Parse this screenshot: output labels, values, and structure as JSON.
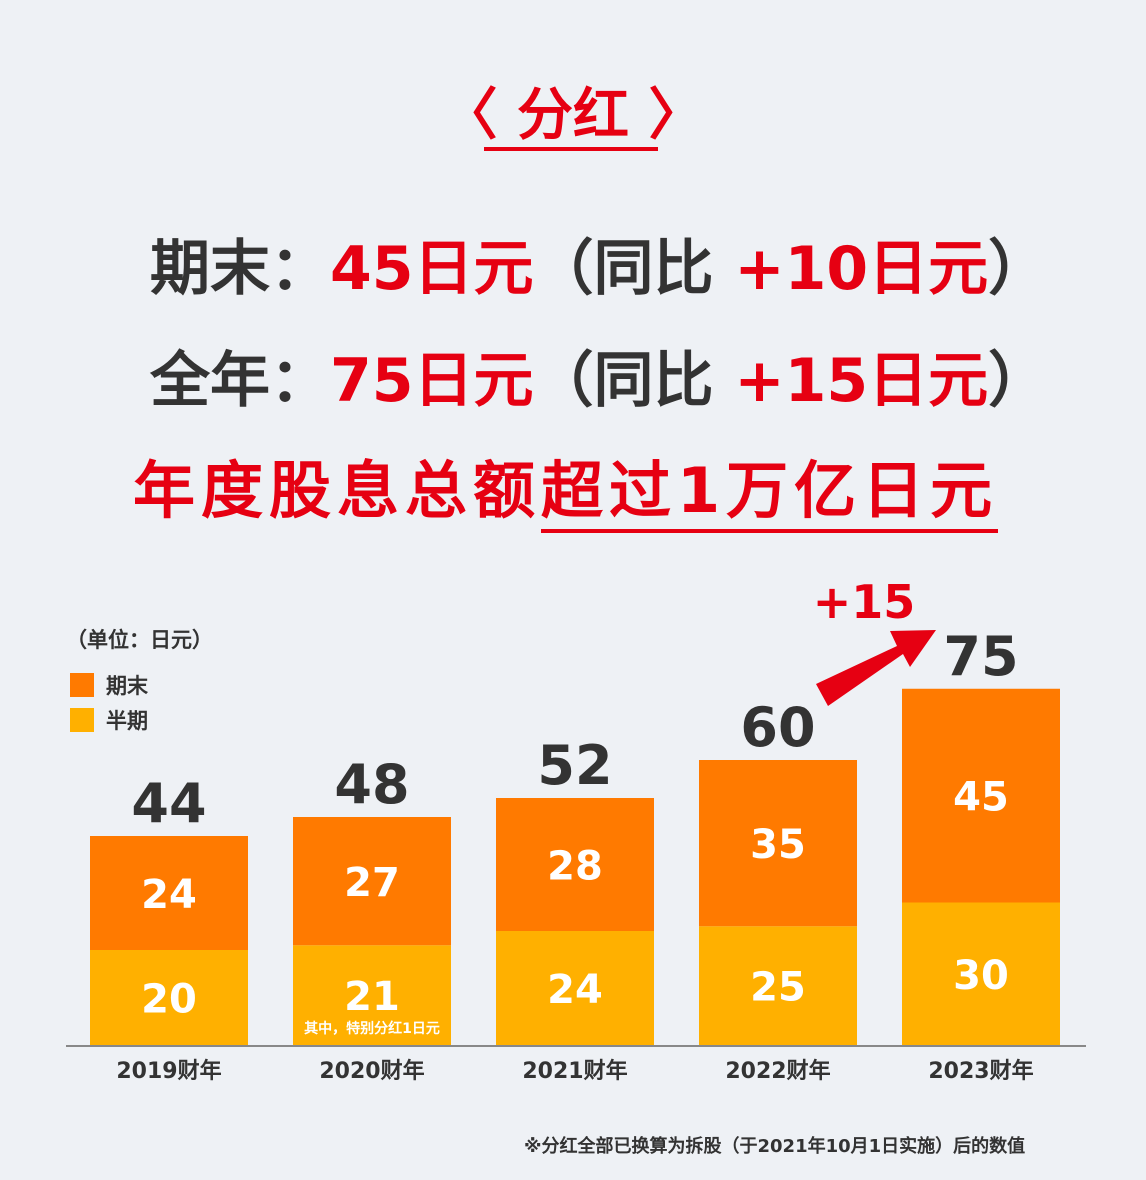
{
  "header": {
    "title": "〈 分红 〉",
    "line1_label": "期末：",
    "line1_value": "45日元",
    "line1_open": "（同比 ",
    "line1_change": "+10日元",
    "line1_close": "）",
    "line2_label": "全年：",
    "line2_value": "75日元",
    "line2_open": "（同比 ",
    "line2_change": "+15日元",
    "line2_close": "）",
    "summary_plain": "年度股息总额",
    "summary_underlined": "超过1万亿日元"
  },
  "unit_label": "（单位：日元）",
  "footnote": "※分红全部已换算为拆股（于2021年10月1日实施）后的数值",
  "colors": {
    "accent": "#e60012",
    "period_end": "#ff7a00",
    "interim": "#ffb000",
    "axis": "#888888"
  },
  "chart_data": {
    "type": "bar",
    "stacked": true,
    "categories": [
      "2019财年",
      "2020财年",
      "2021财年",
      "2022财年",
      "2023财年"
    ],
    "series": [
      {
        "name": "半期",
        "values": [
          20,
          21,
          24,
          25,
          30
        ]
      },
      {
        "name": "期末",
        "values": [
          24,
          27,
          28,
          35,
          45
        ]
      }
    ],
    "totals": [
      44,
      48,
      52,
      60,
      75
    ],
    "ylim": [
      0,
      75
    ],
    "legend": {
      "position": "top-left",
      "entries": [
        "期末",
        "半期"
      ]
    },
    "annotations": [
      {
        "category": "2020财年",
        "text": "其中，特别分红1日元"
      },
      {
        "from": "2022财年",
        "to": "2023财年",
        "text": "+15"
      }
    ],
    "grid": false
  }
}
